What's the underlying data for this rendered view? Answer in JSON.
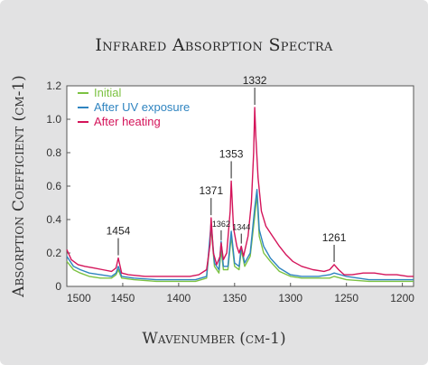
{
  "chart_data": {
    "type": "line",
    "title": "Infrared Absorption Spectra",
    "xlabel": "Wavenumber (cm-1)",
    "ylabel": "Absorption Coefficient (cm-1)",
    "xlim": [
      1500,
      1190
    ],
    "ylim": [
      0,
      1.2
    ],
    "x_reversed": true,
    "xticks": [
      "1500",
      "1450",
      "1400",
      "1350",
      "1300",
      "1250",
      "1200"
    ],
    "yticks": [
      "0",
      "0.2",
      "0.4",
      "0.6",
      "0.8",
      "1.0",
      "1.2"
    ],
    "legend_position": "top-left",
    "series": [
      {
        "name": "Initial",
        "color": "#7cc242",
        "points": [
          [
            1500,
            0.15
          ],
          [
            1494,
            0.1
          ],
          [
            1488,
            0.08
          ],
          [
            1480,
            0.06
          ],
          [
            1470,
            0.05
          ],
          [
            1460,
            0.05
          ],
          [
            1456,
            0.07
          ],
          [
            1454,
            0.1
          ],
          [
            1451,
            0.05
          ],
          [
            1440,
            0.04
          ],
          [
            1420,
            0.03
          ],
          [
            1400,
            0.03
          ],
          [
            1385,
            0.03
          ],
          [
            1375,
            0.05
          ],
          [
            1371,
            0.35
          ],
          [
            1368,
            0.12
          ],
          [
            1364,
            0.08
          ],
          [
            1362,
            0.22
          ],
          [
            1360,
            0.1
          ],
          [
            1356,
            0.1
          ],
          [
            1353,
            0.3
          ],
          [
            1350,
            0.12
          ],
          [
            1346,
            0.1
          ],
          [
            1344,
            0.22
          ],
          [
            1341,
            0.12
          ],
          [
            1336,
            0.18
          ],
          [
            1332,
            0.42
          ],
          [
            1330,
            0.55
          ],
          [
            1328,
            0.3
          ],
          [
            1324,
            0.2
          ],
          [
            1318,
            0.15
          ],
          [
            1310,
            0.09
          ],
          [
            1300,
            0.06
          ],
          [
            1290,
            0.05
          ],
          [
            1275,
            0.05
          ],
          [
            1265,
            0.05
          ],
          [
            1261,
            0.06
          ],
          [
            1250,
            0.04
          ],
          [
            1230,
            0.03
          ],
          [
            1210,
            0.03
          ],
          [
            1190,
            0.03
          ]
        ]
      },
      {
        "name": "After UV exposure",
        "color": "#2f84c0",
        "points": [
          [
            1500,
            0.18
          ],
          [
            1494,
            0.12
          ],
          [
            1488,
            0.1
          ],
          [
            1480,
            0.08
          ],
          [
            1470,
            0.07
          ],
          [
            1460,
            0.06
          ],
          [
            1456,
            0.08
          ],
          [
            1454,
            0.12
          ],
          [
            1451,
            0.06
          ],
          [
            1440,
            0.05
          ],
          [
            1420,
            0.04
          ],
          [
            1400,
            0.04
          ],
          [
            1385,
            0.04
          ],
          [
            1375,
            0.06
          ],
          [
            1371,
            0.38
          ],
          [
            1368,
            0.14
          ],
          [
            1364,
            0.1
          ],
          [
            1362,
            0.27
          ],
          [
            1360,
            0.12
          ],
          [
            1356,
            0.12
          ],
          [
            1353,
            0.33
          ],
          [
            1350,
            0.14
          ],
          [
            1346,
            0.12
          ],
          [
            1344,
            0.24
          ],
          [
            1341,
            0.14
          ],
          [
            1336,
            0.2
          ],
          [
            1332,
            0.47
          ],
          [
            1330,
            0.58
          ],
          [
            1328,
            0.34
          ],
          [
            1324,
            0.24
          ],
          [
            1318,
            0.17
          ],
          [
            1310,
            0.11
          ],
          [
            1300,
            0.07
          ],
          [
            1290,
            0.06
          ],
          [
            1275,
            0.06
          ],
          [
            1265,
            0.07
          ],
          [
            1261,
            0.08
          ],
          [
            1250,
            0.06
          ],
          [
            1230,
            0.04
          ],
          [
            1210,
            0.04
          ],
          [
            1190,
            0.04
          ]
        ]
      },
      {
        "name": "After heating",
        "color": "#d4145a",
        "points": [
          [
            1500,
            0.22
          ],
          [
            1496,
            0.16
          ],
          [
            1490,
            0.13
          ],
          [
            1484,
            0.12
          ],
          [
            1476,
            0.11
          ],
          [
            1468,
            0.1
          ],
          [
            1460,
            0.09
          ],
          [
            1456,
            0.11
          ],
          [
            1454,
            0.17
          ],
          [
            1451,
            0.08
          ],
          [
            1445,
            0.07
          ],
          [
            1430,
            0.06
          ],
          [
            1415,
            0.06
          ],
          [
            1400,
            0.06
          ],
          [
            1390,
            0.06
          ],
          [
            1382,
            0.07
          ],
          [
            1375,
            0.1
          ],
          [
            1372,
            0.25
          ],
          [
            1371,
            0.41
          ],
          [
            1369,
            0.2
          ],
          [
            1366,
            0.13
          ],
          [
            1363,
            0.18
          ],
          [
            1362,
            0.26
          ],
          [
            1360,
            0.16
          ],
          [
            1357,
            0.2
          ],
          [
            1354,
            0.45
          ],
          [
            1353,
            0.63
          ],
          [
            1351,
            0.35
          ],
          [
            1348,
            0.24
          ],
          [
            1346,
            0.2
          ],
          [
            1344,
            0.24
          ],
          [
            1342,
            0.18
          ],
          [
            1338,
            0.3
          ],
          [
            1335,
            0.5
          ],
          [
            1333,
            0.8
          ],
          [
            1332,
            1.07
          ],
          [
            1331,
            0.9
          ],
          [
            1329,
            0.65
          ],
          [
            1326,
            0.45
          ],
          [
            1322,
            0.36
          ],
          [
            1316,
            0.3
          ],
          [
            1310,
            0.24
          ],
          [
            1304,
            0.19
          ],
          [
            1298,
            0.15
          ],
          [
            1290,
            0.12
          ],
          [
            1280,
            0.1
          ],
          [
            1270,
            0.09
          ],
          [
            1265,
            0.1
          ],
          [
            1261,
            0.13
          ],
          [
            1257,
            0.1
          ],
          [
            1252,
            0.07
          ],
          [
            1245,
            0.07
          ],
          [
            1235,
            0.08
          ],
          [
            1225,
            0.08
          ],
          [
            1215,
            0.07
          ],
          [
            1205,
            0.07
          ],
          [
            1195,
            0.06
          ],
          [
            1190,
            0.06
          ]
        ]
      }
    ],
    "annotations": [
      {
        "label": "1454",
        "x": 1454,
        "y": 0.17,
        "small": false
      },
      {
        "label": "1371",
        "x": 1371,
        "y": 0.41,
        "small": false
      },
      {
        "label": "1362",
        "x": 1362,
        "y": 0.26,
        "small": true
      },
      {
        "label": "1353",
        "x": 1353,
        "y": 0.63,
        "small": false
      },
      {
        "label": "1344",
        "x": 1344,
        "y": 0.24,
        "small": true
      },
      {
        "label": "1332",
        "x": 1332,
        "y": 1.07,
        "small": false
      },
      {
        "label": "1261",
        "x": 1261,
        "y": 0.13,
        "small": false
      }
    ]
  }
}
